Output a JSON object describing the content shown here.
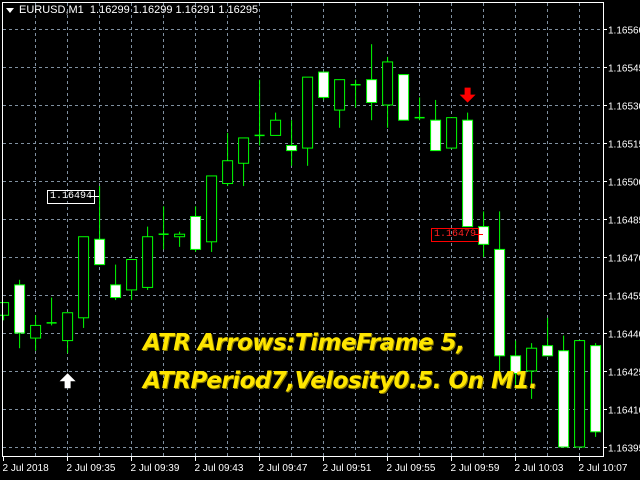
{
  "header": {
    "symbol": "EURUSD,M1",
    "ohlc": "1.16299 1.16299 1.16291 1.16295"
  },
  "colors": {
    "background": "#000000",
    "grid": "#8090a0",
    "candle_outline": "#00ff00",
    "bear_body": "#ffffff",
    "bull_body": "#000000",
    "note_text": "#ffe600",
    "sell_arrow": "#ff0000",
    "buy_arrow": "#ffffff"
  },
  "price_axis": [
    "1.16560",
    "1.16545",
    "1.16530",
    "1.16515",
    "1.16500",
    "1.16485",
    "1.16470",
    "1.16455",
    "1.16440",
    "1.16425",
    "1.16410",
    "1.16395"
  ],
  "time_axis": [
    "2 Jul 2018",
    "2 Jul 09:35",
    "2 Jul 09:39",
    "2 Jul 09:43",
    "2 Jul 09:47",
    "2 Jul 09:51",
    "2 Jul 09:55",
    "2 Jul 09:59",
    "2 Jul 10:03",
    "2 Jul 10:07"
  ],
  "price_labels": {
    "high_label": "1.16494",
    "low_label": "1.16479"
  },
  "note": {
    "line1": "ATR Arrows:TimeFrame 5,",
    "line2": "ATRPeriod7,Velosity0.5. On M1."
  },
  "arrows": [
    {
      "type": "buy-arrow-up",
      "candle_index": 4
    },
    {
      "type": "sell-arrow-down",
      "candle_index": 29
    }
  ],
  "chart_data": {
    "type": "candlestick",
    "timeframe": "M1",
    "ylim": [
      1.16395,
      1.1656
    ],
    "grid": true,
    "candles": [
      [
        1.16447,
        1.16452,
        1.16445,
        1.16452
      ],
      [
        1.16459,
        1.16461,
        1.16434,
        1.1644
      ],
      [
        1.16438,
        1.16447,
        1.16433,
        1.16443
      ],
      [
        1.16444,
        1.16454,
        1.16443,
        1.16444
      ],
      [
        1.16437,
        1.16448,
        1.16432,
        1.16448
      ],
      [
        1.16446,
        1.16478,
        1.16442,
        1.16478
      ],
      [
        1.16477,
        1.16498,
        1.16467,
        1.16467
      ],
      [
        1.16459,
        1.16467,
        1.16453,
        1.16454
      ],
      [
        1.16457,
        1.16469,
        1.16453,
        1.16469
      ],
      [
        1.16458,
        1.16482,
        1.16457,
        1.16478
      ],
      [
        1.16479,
        1.1649,
        1.16473,
        1.16479
      ],
      [
        1.16478,
        1.1648,
        1.16474,
        1.16479
      ],
      [
        1.16486,
        1.1649,
        1.16472,
        1.16473
      ],
      [
        1.16476,
        1.16502,
        1.16472,
        1.16502
      ],
      [
        1.16499,
        1.16519,
        1.16498,
        1.16508
      ],
      [
        1.16507,
        1.16517,
        1.16498,
        1.16517
      ],
      [
        1.16518,
        1.1654,
        1.16514,
        1.16518
      ],
      [
        1.16518,
        1.16527,
        1.16518,
        1.16524
      ],
      [
        1.16514,
        1.16524,
        1.16506,
        1.16512
      ],
      [
        1.16513,
        1.16541,
        1.16506,
        1.16541
      ],
      [
        1.16543,
        1.16543,
        1.16532,
        1.16533
      ],
      [
        1.16528,
        1.1654,
        1.16521,
        1.1654
      ],
      [
        1.16538,
        1.1654,
        1.16529,
        1.16538
      ],
      [
        1.1654,
        1.16554,
        1.16524,
        1.16531
      ],
      [
        1.1653,
        1.16549,
        1.16521,
        1.16547
      ],
      [
        1.16542,
        1.16542,
        1.16524,
        1.16524
      ],
      [
        1.16525,
        1.16533,
        1.16524,
        1.16525
      ],
      [
        1.16524,
        1.16532,
        1.16512,
        1.16512
      ],
      [
        1.16513,
        1.16525,
        1.16513,
        1.16525
      ],
      [
        1.16524,
        1.16527,
        1.16482,
        1.16482
      ],
      [
        1.16482,
        1.16488,
        1.1647,
        1.16475
      ],
      [
        1.16473,
        1.16488,
        1.16422,
        1.16431
      ],
      [
        1.16431,
        1.16437,
        1.16418,
        1.16424
      ],
      [
        1.16425,
        1.16436,
        1.16414,
        1.16434
      ],
      [
        1.16435,
        1.16446,
        1.16431,
        1.16431
      ],
      [
        1.16433,
        1.16439,
        1.16395,
        1.16395
      ],
      [
        1.16395,
        1.16437,
        1.16395,
        1.16437
      ],
      [
        1.16435,
        1.16436,
        1.16399,
        1.16401
      ]
    ]
  }
}
